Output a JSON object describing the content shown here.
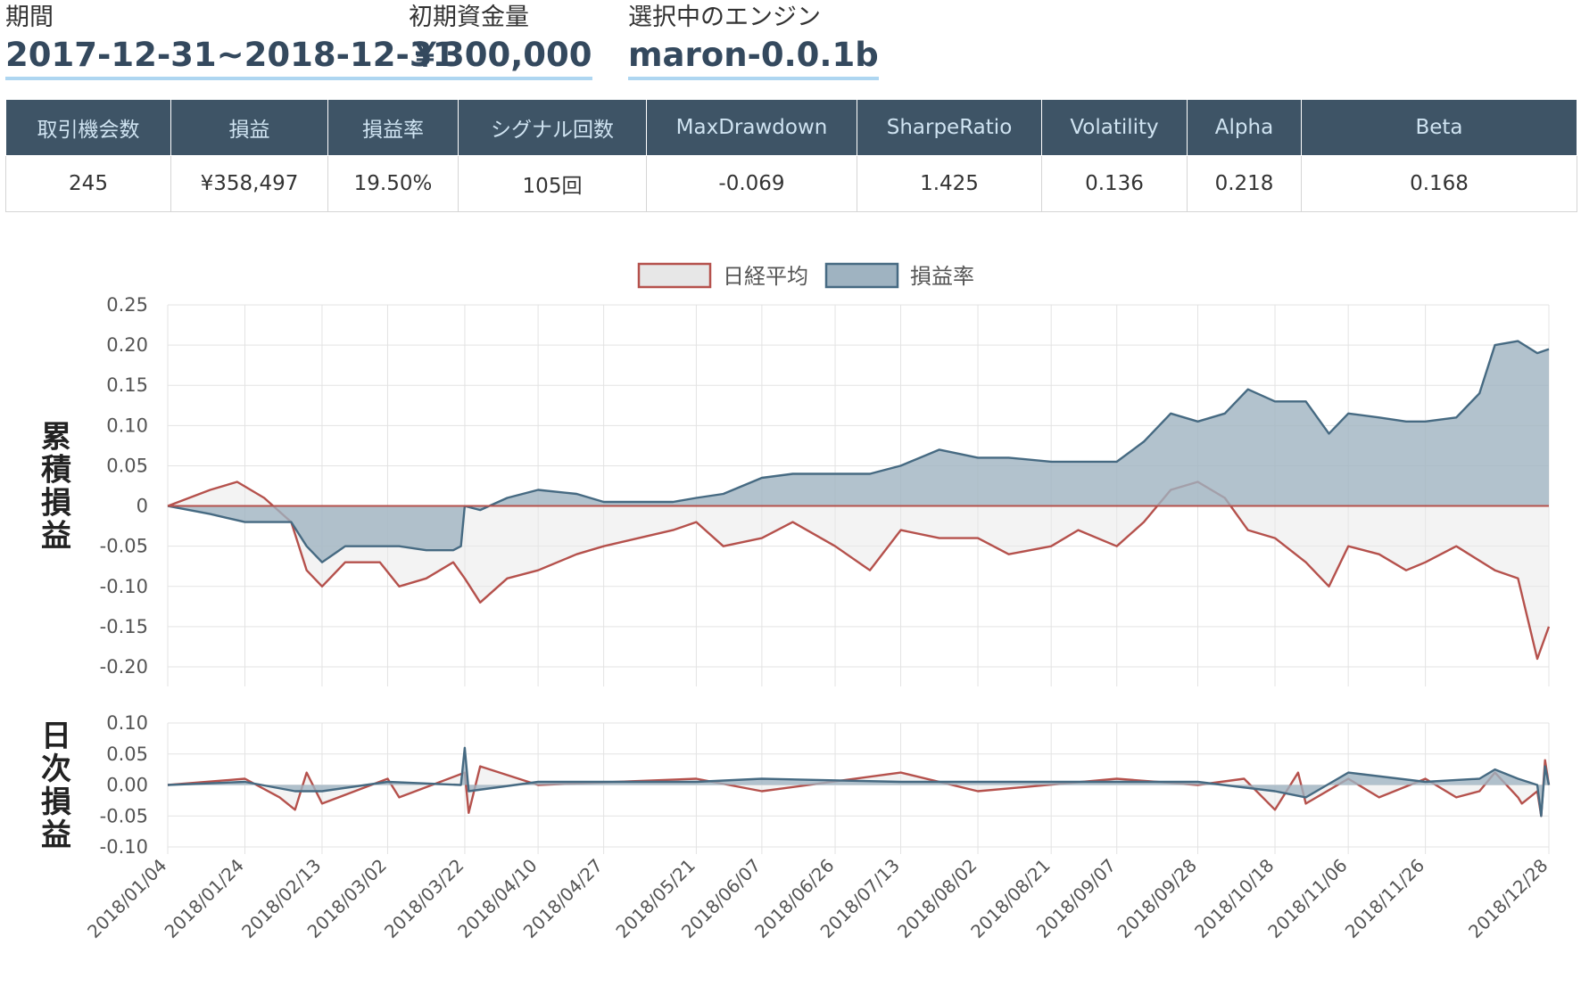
{
  "header": [
    {
      "label": "期間",
      "value": "2017-12-31~2018-12-31"
    },
    {
      "label": "初期資金量",
      "value": "￥300,000"
    },
    {
      "label": "選択中のエンジン",
      "value": "maron-0.0.1b"
    }
  ],
  "stats_table": {
    "headers": [
      "取引機会数",
      "損益",
      "損益率",
      "シグナル回数",
      "MaxDrawdown",
      "SharpeRatio",
      "Volatility",
      "Alpha",
      "Beta"
    ],
    "values": [
      "245",
      "¥358,497",
      "19.50%",
      "105回",
      "-0.069",
      "1.425",
      "0.136",
      "0.218",
      "0.168"
    ]
  },
  "colors": {
    "nikkei": "#b5514c",
    "pnl_line": "#466a82",
    "pnl_fill": "#9fb3c1",
    "nikkei_fill": "#e7e7e7"
  },
  "chart_data": [
    {
      "type": "line",
      "ylabel": "累積損益",
      "ylim": [
        -0.2,
        0.25
      ],
      "yticks": [
        "0.25",
        "0.20",
        "0.15",
        "0.10",
        "0.05",
        "0",
        "-0.05",
        "-0.10",
        "-0.15",
        "-0.20"
      ],
      "legend": [
        "日経平均",
        "損益率"
      ],
      "x_ticks": [
        "2018/01/04",
        "2018/01/24",
        "2018/02/13",
        "2018/03/02",
        "2018/03/22",
        "2018/04/10",
        "2018/04/27",
        "2018/05/21",
        "2018/06/07",
        "2018/06/26",
        "2018/07/13",
        "2018/08/02",
        "2018/08/21",
        "2018/09/07",
        "2018/09/28",
        "2018/10/18",
        "2018/11/06",
        "2018/11/26",
        "2018/12/28"
      ],
      "series": [
        {
          "name": "日経平均",
          "x": [
            "2018/01/04",
            "2018/01/15",
            "2018/01/22",
            "2018/01/29",
            "2018/02/05",
            "2018/02/09",
            "2018/02/13",
            "2018/02/19",
            "2018/02/28",
            "2018/03/05",
            "2018/03/12",
            "2018/03/19",
            "2018/03/22",
            "2018/03/26",
            "2018/04/02",
            "2018/04/10",
            "2018/04/20",
            "2018/04/27",
            "2018/05/15",
            "2018/05/21",
            "2018/05/28",
            "2018/06/07",
            "2018/06/15",
            "2018/06/26",
            "2018/07/05",
            "2018/07/13",
            "2018/07/23",
            "2018/08/02",
            "2018/08/10",
            "2018/08/21",
            "2018/08/28",
            "2018/09/07",
            "2018/09/14",
            "2018/09/21",
            "2018/09/28",
            "2018/10/05",
            "2018/10/11",
            "2018/10/18",
            "2018/10/26",
            "2018/11/01",
            "2018/11/06",
            "2018/11/14",
            "2018/11/21",
            "2018/11/26",
            "2018/12/04",
            "2018/12/14",
            "2018/12/20",
            "2018/12/25",
            "2018/12/28"
          ],
          "values": [
            0.0,
            0.02,
            0.03,
            0.01,
            -0.02,
            -0.08,
            -0.1,
            -0.07,
            -0.07,
            -0.1,
            -0.09,
            -0.07,
            -0.09,
            -0.12,
            -0.09,
            -0.08,
            -0.06,
            -0.05,
            -0.03,
            -0.02,
            -0.05,
            -0.04,
            -0.02,
            -0.05,
            -0.08,
            -0.03,
            -0.04,
            -0.04,
            -0.06,
            -0.05,
            -0.03,
            -0.05,
            -0.02,
            0.02,
            0.03,
            0.01,
            -0.03,
            -0.04,
            -0.07,
            -0.1,
            -0.05,
            -0.06,
            -0.08,
            -0.07,
            -0.05,
            -0.08,
            -0.09,
            -0.19,
            -0.15
          ]
        },
        {
          "name": "損益率",
          "x": [
            "2018/01/04",
            "2018/01/15",
            "2018/01/24",
            "2018/02/05",
            "2018/02/09",
            "2018/02/13",
            "2018/02/19",
            "2018/02/28",
            "2018/03/05",
            "2018/03/12",
            "2018/03/19",
            "2018/03/21",
            "2018/03/22",
            "2018/03/26",
            "2018/04/02",
            "2018/04/10",
            "2018/04/20",
            "2018/04/27",
            "2018/05/15",
            "2018/05/21",
            "2018/05/28",
            "2018/06/07",
            "2018/06/15",
            "2018/06/26",
            "2018/07/05",
            "2018/07/13",
            "2018/07/23",
            "2018/08/02",
            "2018/08/10",
            "2018/08/21",
            "2018/08/28",
            "2018/09/07",
            "2018/09/14",
            "2018/09/21",
            "2018/09/28",
            "2018/10/05",
            "2018/10/11",
            "2018/10/18",
            "2018/10/26",
            "2018/11/01",
            "2018/11/06",
            "2018/11/14",
            "2018/11/21",
            "2018/11/26",
            "2018/12/04",
            "2018/12/10",
            "2018/12/14",
            "2018/12/20",
            "2018/12/25",
            "2018/12/28"
          ],
          "values": [
            0.0,
            -0.01,
            -0.02,
            -0.02,
            -0.05,
            -0.07,
            -0.05,
            -0.05,
            -0.05,
            -0.055,
            -0.055,
            -0.05,
            0.0,
            -0.005,
            0.01,
            0.02,
            0.015,
            0.005,
            0.005,
            0.01,
            0.015,
            0.035,
            0.04,
            0.04,
            0.04,
            0.05,
            0.07,
            0.06,
            0.06,
            0.055,
            0.055,
            0.055,
            0.08,
            0.115,
            0.105,
            0.115,
            0.145,
            0.13,
            0.13,
            0.09,
            0.115,
            0.11,
            0.105,
            0.105,
            0.11,
            0.14,
            0.2,
            0.205,
            0.19,
            0.195
          ]
        }
      ]
    },
    {
      "type": "line",
      "ylabel": "日次損益",
      "ylim": [
        -0.1,
        0.1
      ],
      "yticks": [
        "0.10",
        "0.05",
        "0.00",
        "-0.05",
        "-0.10"
      ],
      "series": [
        {
          "name": "日経平均",
          "x": [
            "2018/01/04",
            "2018/01/24",
            "2018/02/02",
            "2018/02/06",
            "2018/02/09",
            "2018/02/13",
            "2018/03/02",
            "2018/03/05",
            "2018/03/22",
            "2018/03/23",
            "2018/03/26",
            "2018/04/10",
            "2018/05/21",
            "2018/06/07",
            "2018/07/13",
            "2018/08/02",
            "2018/09/07",
            "2018/09/28",
            "2018/10/10",
            "2018/10/18",
            "2018/10/24",
            "2018/10/26",
            "2018/11/06",
            "2018/11/14",
            "2018/11/26",
            "2018/12/04",
            "2018/12/10",
            "2018/12/14",
            "2018/12/20",
            "2018/12/21",
            "2018/12/25",
            "2018/12/26",
            "2018/12/27",
            "2018/12/28"
          ],
          "values": [
            0.0,
            0.01,
            -0.02,
            -0.04,
            0.02,
            -0.03,
            0.01,
            -0.02,
            0.02,
            -0.045,
            0.03,
            0.0,
            0.01,
            -0.01,
            0.02,
            -0.01,
            0.01,
            0.0,
            0.01,
            -0.04,
            0.02,
            -0.03,
            0.01,
            -0.02,
            0.01,
            -0.02,
            -0.01,
            0.02,
            -0.02,
            -0.03,
            -0.01,
            -0.05,
            0.04,
            0.0
          ]
        },
        {
          "name": "損益率",
          "x": [
            "2018/01/04",
            "2018/01/24",
            "2018/02/06",
            "2018/02/13",
            "2018/03/02",
            "2018/03/21",
            "2018/03/22",
            "2018/03/23",
            "2018/04/10",
            "2018/05/21",
            "2018/06/07",
            "2018/07/13",
            "2018/08/02",
            "2018/09/07",
            "2018/09/28",
            "2018/10/18",
            "2018/10/26",
            "2018/11/06",
            "2018/11/26",
            "2018/12/10",
            "2018/12/14",
            "2018/12/20",
            "2018/12/25",
            "2018/12/26",
            "2018/12/27",
            "2018/12/28"
          ],
          "values": [
            0.0,
            0.005,
            -0.01,
            -0.01,
            0.005,
            0.0,
            0.06,
            -0.01,
            0.005,
            0.005,
            0.01,
            0.005,
            0.005,
            0.005,
            0.005,
            -0.01,
            -0.02,
            0.02,
            0.005,
            0.01,
            0.025,
            0.01,
            0.0,
            -0.05,
            0.03,
            0.0
          ]
        }
      ]
    }
  ]
}
